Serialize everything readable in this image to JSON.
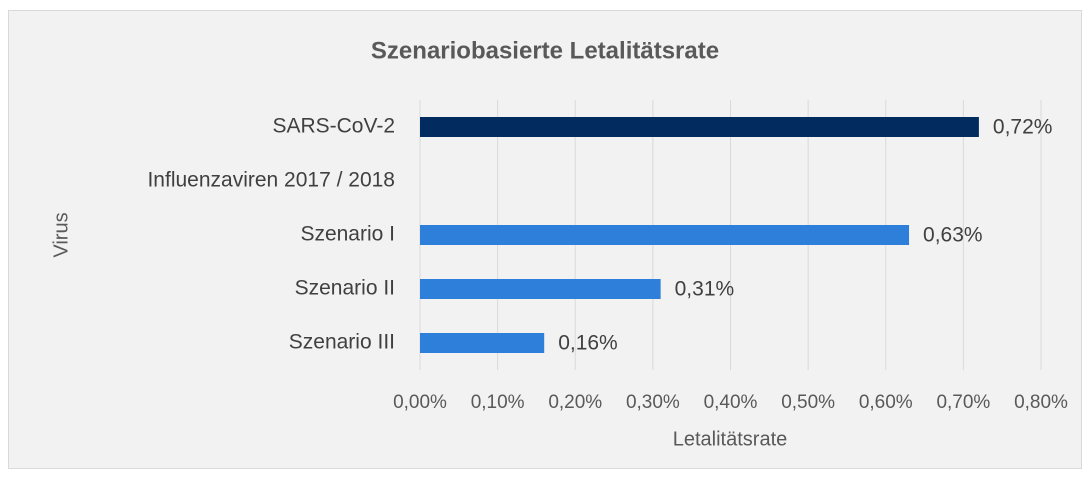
{
  "chart_data": {
    "type": "bar",
    "orientation": "horizontal",
    "title": "Szenariobasierte Letalitätsrate",
    "x_label": "Letalitätsrate",
    "y_label": "Virus",
    "categories": [
      "SARS-CoV-2",
      "Influenzaviren 2017 / 2018",
      "Szenario I",
      "Szenario II",
      "Szenario III"
    ],
    "values": [
      0.72,
      null,
      0.63,
      0.31,
      0.16
    ],
    "value_labels": [
      "0,72%",
      null,
      "0,63%",
      "0,31%",
      "0,16%"
    ],
    "colors": [
      "#022b5f",
      null,
      "#2e7fd9",
      "#2e7fd9",
      "#2e7fd9"
    ],
    "xlim": [
      0,
      0.8
    ],
    "xticks": [
      {
        "value": 0,
        "label": "0,00%"
      },
      {
        "value": 0.1,
        "label": "0,10%"
      },
      {
        "value": 0.2,
        "label": "0,20%"
      },
      {
        "value": 0.3,
        "label": "0,30%"
      },
      {
        "value": 0.4,
        "label": "0,40%"
      },
      {
        "value": 0.5,
        "label": "0,50%"
      },
      {
        "value": 0.6,
        "label": "0,60%"
      },
      {
        "value": 0.7,
        "label": "0,70%"
      },
      {
        "value": 0.8,
        "label": "0,80%"
      }
    ],
    "grid": true
  }
}
